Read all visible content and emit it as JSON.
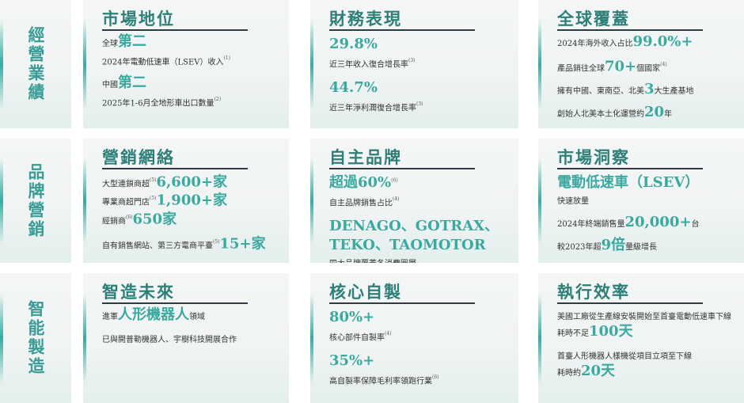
{
  "rows": [
    {
      "label": "經營業績",
      "cards": [
        {
          "title": "市場地位",
          "lines": [
            [
              "全球",
              "第二"
            ],
            [
              "2024年電動低速車（LSEV）收入",
              "(1)"
            ],
            [
              "中國",
              "第二"
            ],
            [
              "2025年1-6月全地形車出口數量",
              "(2)"
            ]
          ]
        },
        {
          "title": "財務表現",
          "lines": [
            [
              "29.8%"
            ],
            [
              "近三年收入復合增長率",
              "(3)"
            ],
            [
              "44.7%"
            ],
            [
              "近三年淨利潤復合增長率",
              "(3)"
            ]
          ]
        },
        {
          "title": "全球覆蓋",
          "lines": [
            [
              "2024年海外收入占比",
              "99.0%+"
            ],
            [
              "產品銷往全球",
              "70+",
              "個國家",
              "(4)"
            ],
            [
              "擁有中國、東南亞、北美",
              "3",
              "大生產基地"
            ],
            [
              "創始人北美本土化運營約",
              "20",
              "年"
            ]
          ]
        }
      ]
    },
    {
      "label": "品牌營銷",
      "cards": [
        {
          "title": "營銷網絡",
          "lines": [
            [
              "大型連鎖商超",
              "(5)",
              "6,600+家"
            ],
            [
              "專業商超門店",
              "(5)",
              "1,900+家"
            ],
            [
              "經銷商",
              "(6)",
              "650家"
            ],
            [
              "自有銷售網站、第三方電商平臺",
              "(5)",
              "15+家"
            ]
          ]
        },
        {
          "title": "自主品牌",
          "lines": [
            [
              "超過60%",
              "(6)"
            ],
            [
              "自主品牌銷售占比",
              "(4)"
            ],
            [
              "DENAGO、GOTRAX、"
            ],
            [
              "TEKO、TAOMOTOR"
            ],
            [
              "四大品牌覆蓋各消費圈層"
            ]
          ]
        },
        {
          "title": "市場洞察",
          "lines": [
            [
              "電動低速車（LSEV）"
            ],
            [
              "快速放量"
            ],
            [
              "2024年終端銷售量",
              "20,000+",
              "台"
            ],
            [
              "較2023年超",
              "9倍",
              "量級增長"
            ]
          ]
        }
      ]
    },
    {
      "label": "智能製造",
      "cards": [
        {
          "title": "智造未來",
          "lines": [
            [
              "進軍",
              "人形機器人",
              "領域"
            ],
            [
              "已與開普勒機器人、宇樹科技開展合作"
            ]
          ]
        },
        {
          "title": "核心自製",
          "lines": [
            [
              "80%+"
            ],
            [
              "核心部件自製率",
              "(4)"
            ],
            [
              "35%+"
            ],
            [
              "高自製率保障毛利率領跑行業",
              "(6)"
            ]
          ]
        },
        {
          "title": "執行效率",
          "lines": [
            [
              "美國工廠從生產線安裝開始至首臺電動低速車下線"
            ],
            [
              "耗時不足",
              "100天"
            ],
            [
              "首臺人形機器人樣機從項目立項至下線"
            ],
            [
              "耗時約",
              "20天"
            ]
          ]
        }
      ]
    }
  ]
}
